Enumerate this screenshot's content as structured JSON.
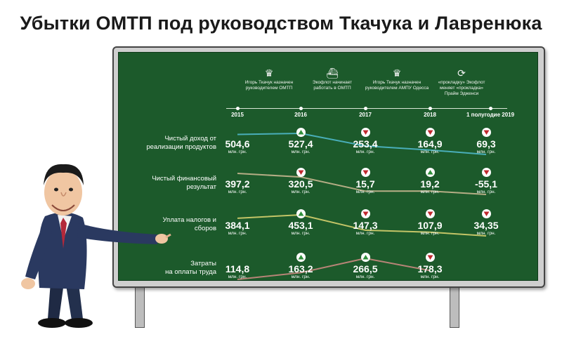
{
  "title": "Убытки ОМТП под руководством Ткачука и Лавренюка",
  "events": [
    {
      "text": [
        "Игорь Ткачук назначен",
        "руководителем ОМТП"
      ],
      "icon": "crown-icon",
      "glyph": "♛"
    },
    {
      "text": [
        "Экофлот начинает",
        "работать в ОМТП"
      ],
      "icon": "ship-icon",
      "glyph": "⛴"
    },
    {
      "text": [
        "Игорь Ткачук назначен",
        "руководителем АМПУ Одесса"
      ],
      "icon": "crown-icon",
      "glyph": "♛"
    },
    {
      "text": [
        "«прокладку» Экофлот",
        "меняет «прокладка»",
        "Прайм Эдженси"
      ],
      "icon": "refresh-icon",
      "glyph": "⟳"
    }
  ],
  "colors": {
    "board": "#1c5a2b",
    "up": "#2f8f3a",
    "down": "#c0282d",
    "line_income": "#4fb7c9",
    "line_fin": "#c7b68f",
    "line_tax": "#d6cf6e",
    "line_cost": "#c98880"
  },
  "chart_data": {
    "type": "table",
    "title": "Убытки ОМТП под руководством Ткачука и Лавренюка",
    "columns": [
      "2015",
      "2016",
      "2017",
      "2018",
      "1 полугодие 2019"
    ],
    "unit": "млн. грн.",
    "rows": [
      {
        "label": [
          "Чистый доход от",
          "реализации продуктов"
        ],
        "values": [
          504.6,
          527.4,
          253.4,
          164.9,
          69.3
        ],
        "display": [
          "504,6",
          "527,4",
          "253,4",
          "164,9",
          "69,3"
        ],
        "trend": [
          null,
          "up",
          "down",
          "down",
          "down"
        ]
      },
      {
        "label": [
          "Чистый финансовый",
          "результат"
        ],
        "values": [
          397.2,
          320.5,
          15.7,
          19.2,
          -55.1
        ],
        "display": [
          "397,2",
          "320,5",
          "15,7",
          "19,2",
          "-55,1"
        ],
        "trend": [
          null,
          "down",
          "down",
          "up",
          "down"
        ]
      },
      {
        "label": [
          "Уплата налогов и",
          "сборов"
        ],
        "values": [
          384.1,
          453.1,
          147.3,
          107.9,
          34.35
        ],
        "display": [
          "384,1",
          "453,1",
          "147,3",
          "107,9",
          "34,35"
        ],
        "trend": [
          null,
          "up",
          "down",
          "down",
          "down"
        ]
      },
      {
        "label": [
          "Затраты",
          "на оплаты труда"
        ],
        "values": [
          114.8,
          163.2,
          266.5,
          178.3
        ],
        "display": [
          "114,8",
          "163,2",
          "266,5",
          "178,3"
        ],
        "trend": [
          null,
          "up",
          "up",
          "down"
        ]
      }
    ]
  }
}
